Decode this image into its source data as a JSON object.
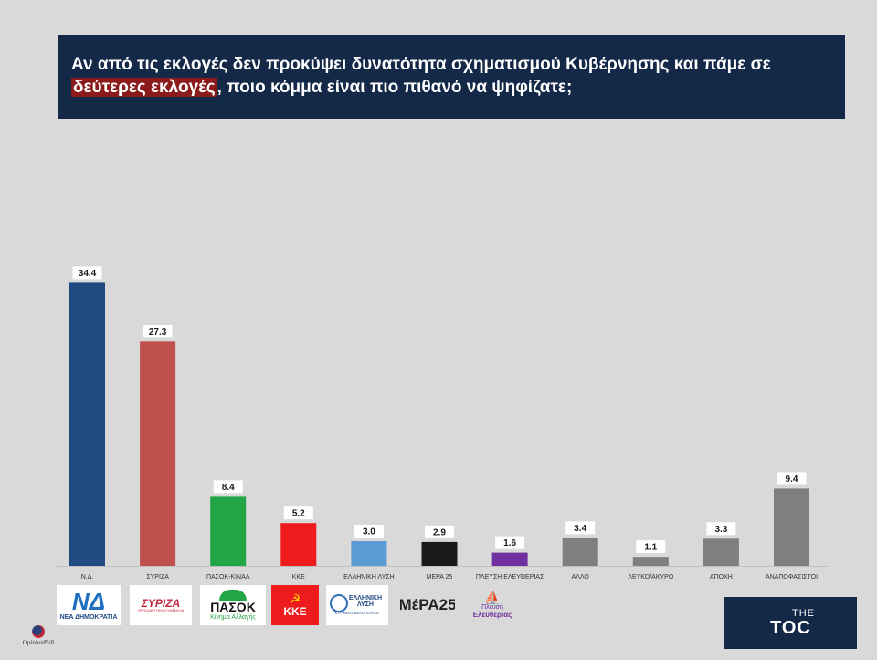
{
  "title": {
    "part1": "Αν από τις εκλογές δεν προκύψει δυνατότητα σχηματισμού Κυβέρνησης και πάμε σε",
    "highlight": "δεύτερες εκλογές",
    "part2": ", ποιο κόμμα είναι πιο πιθανό να ψηφίζατε;"
  },
  "chart_data": {
    "type": "bar",
    "title": "Αν από τις εκλογές δεν προκύψει δυνατότητα σχηματισμού Κυβέρνησης και πάμε σε δεύτερες εκλογές, ποιο κόμμα είναι πιο πιθανό να ψηφίζατε;",
    "categories": [
      "Ν.Δ.",
      "ΣΥΡΙΖΑ",
      "ΠΑΣΟΚ-ΚΙΝΑΛ",
      "ΚΚΕ",
      "ΕΛΛΗΝΙΚΗ ΛΥΣΗ",
      "ΜΕΡΑ 25",
      "ΠΛΕΥΣΗ ΕΛΕΥΘΕΡΙΑΣ",
      "ΑΛΛΟ",
      "ΛΕΥΚΟ/ΑΚΥΡΟ",
      "ΑΠΟΧΗ",
      "ΑΝΑΠΟΦΑΣΙΣΤΟΙ"
    ],
    "values": [
      34.4,
      27.3,
      8.4,
      5.2,
      3.0,
      2.9,
      1.6,
      3.4,
      1.1,
      3.3,
      9.4
    ],
    "value_labels": [
      "34.4",
      "27.3",
      "8.4",
      "5.2",
      "3.0",
      "2.9",
      "1.6",
      "3.4",
      "1.1",
      "3.3",
      "9.4"
    ],
    "colors": [
      "#1f4b82",
      "#c0504d",
      "#22a645",
      "#ee1c1c",
      "#5b9bd5",
      "#1a1a1a",
      "#7030a0",
      "#7f7f7f",
      "#7f7f7f",
      "#7f7f7f",
      "#7f7f7f"
    ],
    "xlabel": "",
    "ylabel": "",
    "ylim": [
      0,
      40
    ],
    "grid": false,
    "legend": "none"
  },
  "logos": {
    "nd": {
      "mark": "ΝΔ",
      "text": "ΝΕΑ ΔΗΜΟΚΡΑΤΙΑ"
    },
    "syriza": {
      "mark": "ΣΥΡΙΖΑ",
      "text": "ΠΡΟΟΔΕΥΤΙΚΗ ΣΥΜΜΑΧΙΑ"
    },
    "pasok": {
      "mark": "ΠΑΣΟΚ",
      "text": "Κίνημα Αλλαγής"
    },
    "kke": {
      "mark": "ΚΚΕ"
    },
    "elliniki_lysi": {
      "line1": "ΕΛΛΗΝΙΚΗ",
      "line2": "ΛΥΣΗ",
      "text": "ΚΥΡΙΑΚΟΣ ΒΕΛΟΠΟΥΛΟΣ"
    },
    "mera25": {
      "mark": "ΜέΡΑ25"
    },
    "plefsi": {
      "line1": "Πλεύση",
      "line2": "Ελευθερίας"
    },
    "opinionpoll": {
      "text": "OpinionPoll"
    },
    "thetoc": {
      "line1": "THE",
      "line2": "TOC"
    }
  },
  "colors": {
    "title_bg": "#142847",
    "highlight": "#8b1a1a",
    "background": "#d9d9d9"
  }
}
